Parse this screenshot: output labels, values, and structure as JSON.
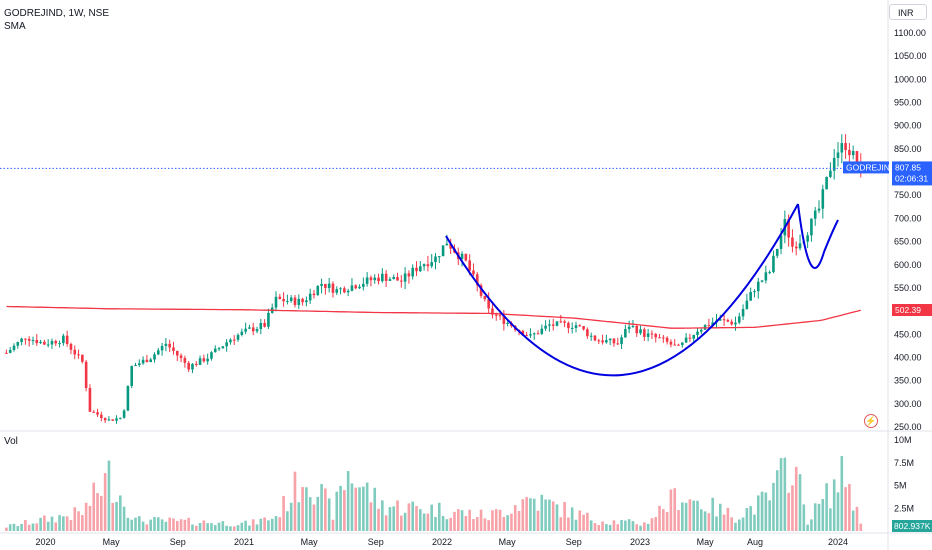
{
  "header": {
    "symbol_line": "GODREJIND, 1W, NSE",
    "indicator": "SMA"
  },
  "currency_button": "INR",
  "volume_pane": {
    "title": "Vol",
    "last_value": "802.937K"
  },
  "price_label": {
    "symbol": "GODREJIND",
    "price": "807.85",
    "countdown": "02:06:31",
    "color": "#2962ff"
  },
  "sma_label": {
    "value": "502.39",
    "color": "#f23645"
  },
  "colors": {
    "up": "#089981",
    "down": "#f23645",
    "vol_up": "#7fccbf",
    "vol_down": "#f7a1a8",
    "sma": "#f23645",
    "pattern": "#0000e0"
  },
  "icons": {
    "alert": "lightning-icon"
  },
  "chart_data": {
    "type": "candlestick",
    "title": "GODREJIND, 1W, NSE",
    "price_axis": {
      "ticks": [
        "1100.00",
        "1050.00",
        "1000.00",
        "950.00",
        "900.00",
        "850.00",
        "750.00",
        "700.00",
        "650.00",
        "600.00",
        "550.00",
        "450.00",
        "400.00",
        "350.00",
        "300.00",
        "250.00"
      ],
      "range": [
        250,
        1100
      ]
    },
    "volume_axis": {
      "ticks": [
        "10M",
        "7.5M",
        "5M",
        "2.5M"
      ],
      "range": [
        0,
        10000000
      ]
    },
    "x_ticks": [
      "2020",
      "May",
      "Sep",
      "2021",
      "May",
      "Sep",
      "2022",
      "May",
      "Sep",
      "2023",
      "May",
      "Aug",
      "2024"
    ],
    "x_tick_dates": [
      "2020-01-01",
      "2020-05-01",
      "2020-09-01",
      "2021-01-01",
      "2021-05-01",
      "2021-09-01",
      "2022-01-01",
      "2022-05-01",
      "2022-09-01",
      "2023-01-01",
      "2023-05-01",
      "2023-08-01",
      "2024-01-01"
    ],
    "last_price": 807.85,
    "sma_last": 502.39,
    "price_anchors": [
      [
        "2019-10-21",
        410
      ],
      [
        "2019-11-25",
        445
      ],
      [
        "2019-12-30",
        430
      ],
      [
        "2020-02-03",
        440
      ],
      [
        "2020-03-09",
        390
      ],
      [
        "2020-03-23",
        285
      ],
      [
        "2020-04-27",
        265
      ],
      [
        "2020-05-18",
        270
      ],
      [
        "2020-05-25",
        290
      ],
      [
        "2020-06-08",
        380
      ],
      [
        "2020-07-13",
        400
      ],
      [
        "2020-08-10",
        430
      ],
      [
        "2020-09-21",
        380
      ],
      [
        "2020-10-26",
        400
      ],
      [
        "2020-12-07",
        440
      ],
      [
        "2021-01-11",
        460
      ],
      [
        "2021-02-08",
        470
      ],
      [
        "2021-03-01",
        525
      ],
      [
        "2021-04-19",
        520
      ],
      [
        "2021-05-24",
        560
      ],
      [
        "2021-06-21",
        545
      ],
      [
        "2021-08-02",
        560
      ],
      [
        "2021-09-13",
        575
      ],
      [
        "2021-10-18",
        565
      ],
      [
        "2021-11-22",
        600
      ],
      [
        "2021-12-20",
        615
      ],
      [
        "2022-01-10",
        650
      ],
      [
        "2022-02-14",
        605
      ],
      [
        "2022-03-28",
        500
      ],
      [
        "2022-05-09",
        470
      ],
      [
        "2022-06-13",
        445
      ],
      [
        "2022-07-18",
        470
      ],
      [
        "2022-09-05",
        470
      ],
      [
        "2022-10-10",
        440
      ],
      [
        "2022-11-21",
        430
      ],
      [
        "2022-12-12",
        470
      ],
      [
        "2023-01-09",
        450
      ],
      [
        "2023-02-06",
        440
      ],
      [
        "2023-03-13",
        420
      ],
      [
        "2023-04-17",
        460
      ],
      [
        "2023-05-22",
        480
      ],
      [
        "2023-06-26",
        475
      ],
      [
        "2023-07-31",
        550
      ],
      [
        "2023-08-28",
        585
      ],
      [
        "2023-09-25",
        690
      ],
      [
        "2023-10-09",
        640
      ],
      [
        "2023-10-30",
        660
      ],
      [
        "2023-11-27",
        720
      ],
      [
        "2023-12-25",
        840
      ],
      [
        "2024-01-15",
        860
      ],
      [
        "2024-02-12",
        808
      ]
    ],
    "sma_anchors": [
      [
        "2019-10-21",
        510
      ],
      [
        "2020-05-01",
        505
      ],
      [
        "2021-01-01",
        503
      ],
      [
        "2021-09-01",
        497
      ],
      [
        "2022-04-01",
        495
      ],
      [
        "2022-09-01",
        485
      ],
      [
        "2023-03-01",
        463
      ],
      [
        "2023-08-01",
        465
      ],
      [
        "2023-12-01",
        480
      ],
      [
        "2024-02-12",
        502
      ]
    ],
    "volume_anchors": [
      [
        "2019-10-21",
        0.6
      ],
      [
        "2020-03-09",
        2.5
      ],
      [
        "2020-04-27",
        7.5
      ],
      [
        "2020-06-15",
        1.5
      ],
      [
        "2021-01-11",
        1.0
      ],
      [
        "2021-03-01",
        2.0
      ],
      [
        "2021-04-26",
        8.0
      ],
      [
        "2021-06-14",
        2.5
      ],
      [
        "2021-07-12",
        8.0
      ],
      [
        "2021-09-13",
        3.5
      ],
      [
        "2021-12-20",
        3.0
      ],
      [
        "2022-03-28",
        2.0
      ],
      [
        "2022-06-13",
        4.5
      ],
      [
        "2022-10-10",
        1.5
      ],
      [
        "2023-01-09",
        1.0
      ],
      [
        "2023-03-13",
        5.0
      ],
      [
        "2023-06-26",
        2.0
      ],
      [
        "2023-08-28",
        4.5
      ],
      [
        "2023-10-09",
        10.0
      ],
      [
        "2023-11-06",
        1.5
      ],
      [
        "2024-01-15",
        8.0
      ],
      [
        "2024-02-12",
        0.8
      ]
    ]
  }
}
